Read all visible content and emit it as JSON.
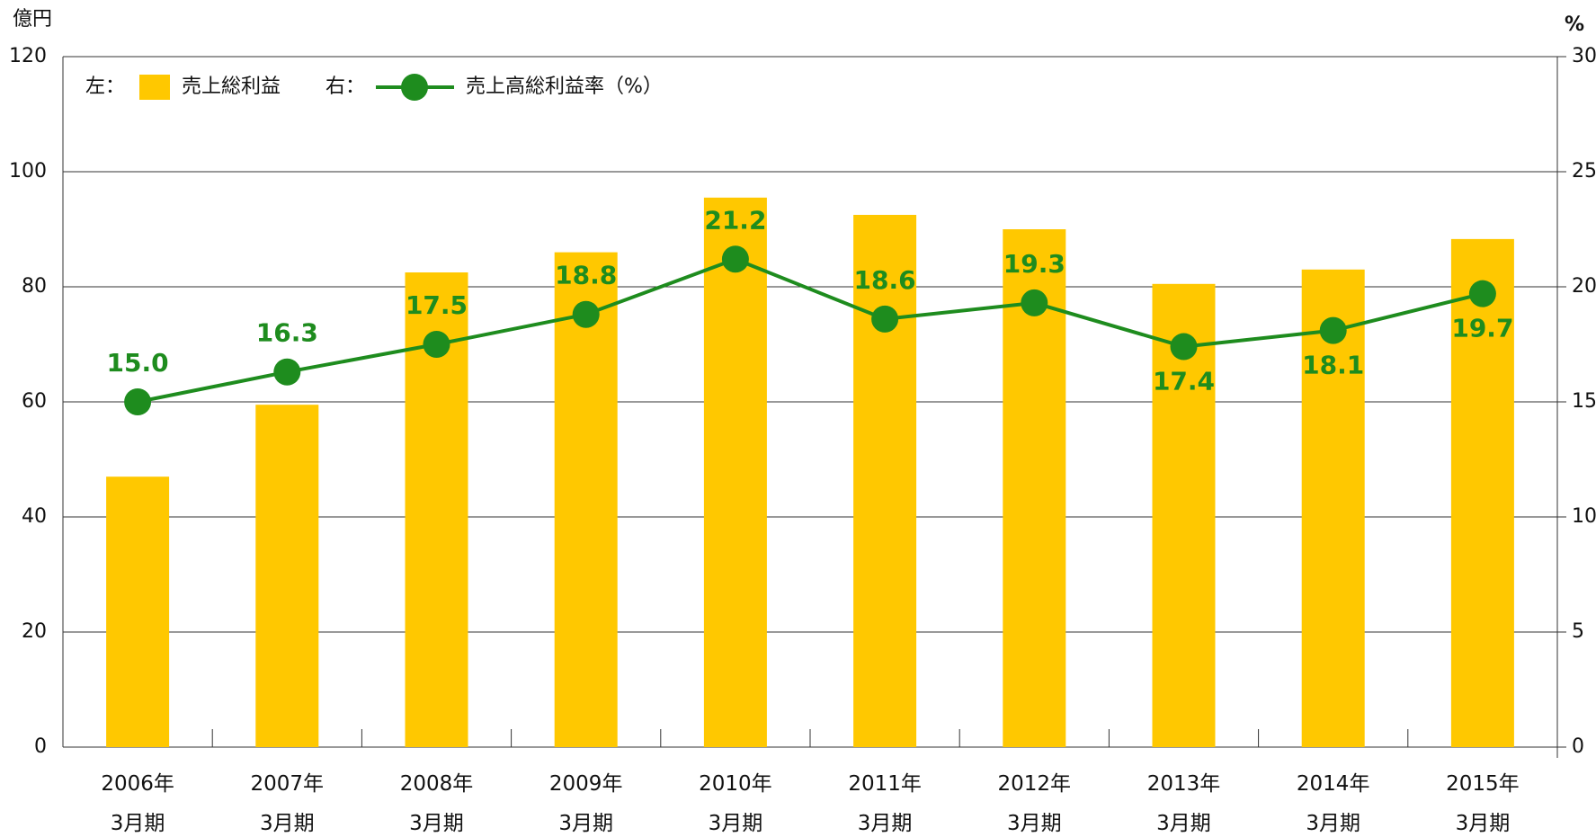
{
  "chart_data": {
    "type": "bar_line",
    "y_unit": "億円",
    "y2_unit": "%",
    "categories": [
      "2006年\n3月期",
      "2007年\n3月期",
      "2008年\n3月期",
      "2009年\n3月期",
      "2010年\n3月期",
      "2011年\n3月期",
      "2012年\n3月期",
      "2013年\n3月期",
      "2014年\n3月期",
      "2015年\n3月期"
    ],
    "legend_prefixes": [
      "左：",
      "右："
    ],
    "series": [
      {
        "name": "売上総利益",
        "color": "#ffc800",
        "type": "bar",
        "axis": "y",
        "values": [
          47,
          59.5,
          82.5,
          86,
          95.5,
          92.5,
          90,
          80.5,
          83,
          88.3
        ]
      },
      {
        "name": "売上高総利益率（%）",
        "color": "#1e8c1e",
        "type": "line",
        "axis": "y2",
        "values": [
          15.0,
          16.3,
          17.5,
          18.8,
          21.2,
          18.6,
          19.3,
          17.4,
          18.1,
          19.7
        ],
        "value_labels": [
          "15.0",
          "16.3",
          "17.5",
          "18.8",
          "21.2",
          "18.6",
          "19.3",
          "17.4",
          "18.1",
          "19.7"
        ],
        "label_positions": [
          "above",
          "above",
          "above",
          "above",
          "above",
          "above",
          "above",
          "below",
          "below",
          "below"
        ]
      }
    ],
    "ylim": [
      0,
      120
    ],
    "yticks": [
      0,
      20,
      40,
      60,
      80,
      100,
      120
    ],
    "y2lim": [
      0,
      30
    ],
    "y2ticks": [
      0,
      5,
      10,
      15,
      20,
      25,
      30
    ],
    "grid": true
  }
}
